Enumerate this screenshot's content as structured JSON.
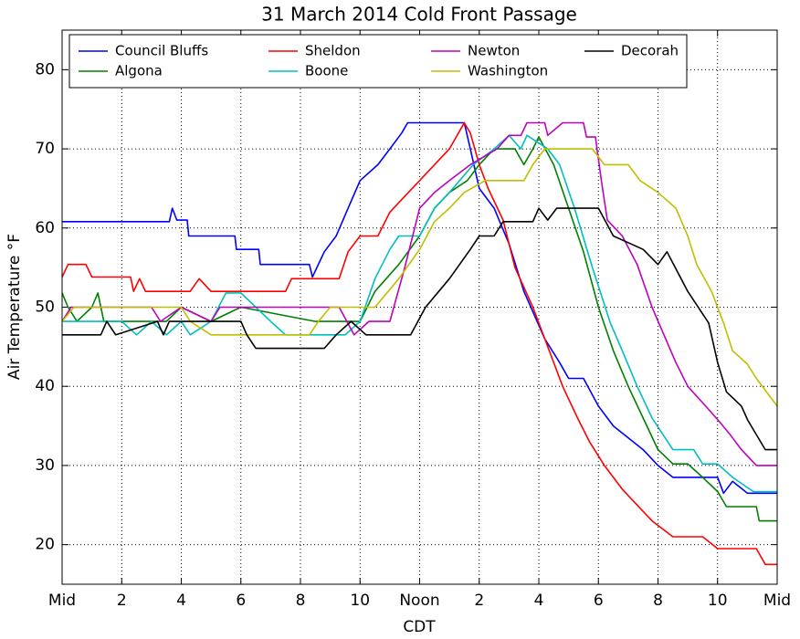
{
  "chart_data": {
    "type": "line",
    "title": "31 March 2014 Cold Front Passage",
    "xlabel": "CDT",
    "ylabel": "Air Temperature °F",
    "xlim": [
      0,
      24
    ],
    "ylim": [
      15,
      85
    ],
    "xticks": [
      {
        "value": 0,
        "label": "Mid"
      },
      2,
      4,
      6,
      8,
      10,
      {
        "value": 12,
        "label": "Noon"
      },
      {
        "value": 14,
        "label": "2"
      },
      {
        "value": 16,
        "label": "4"
      },
      {
        "value": 18,
        "label": "6"
      },
      {
        "value": 20,
        "label": "8"
      },
      {
        "value": 22,
        "label": "10"
      },
      {
        "value": 24,
        "label": "Mid"
      }
    ],
    "yticks": [
      20,
      30,
      40,
      50,
      60,
      70,
      80
    ],
    "grid": true,
    "legend": "upper center",
    "series": [
      {
        "name": "Council Bluffs",
        "color": "#0000ff",
        "x": [
          0,
          3.6,
          3.7,
          3.85,
          4.2,
          4.25,
          5.8,
          5.85,
          6.6,
          6.65,
          8.3,
          8.4,
          8.8,
          9.2,
          9.6,
          10,
          10.6,
          11,
          11.4,
          11.6,
          13.5,
          13.7,
          14,
          14.5,
          15,
          15.5,
          16.2,
          16.7,
          17,
          17.5,
          18,
          18.5,
          19.5,
          20,
          20.5,
          22,
          22.2,
          22.5,
          23,
          24
        ],
        "values": [
          60.8,
          60.8,
          62.5,
          61,
          61,
          59,
          59,
          57.3,
          57.3,
          55.4,
          55.4,
          53.8,
          57,
          59,
          62.5,
          66,
          68,
          70,
          72,
          73.3,
          73.3,
          70,
          65,
          62.5,
          58,
          52,
          46,
          43,
          41,
          41,
          37.5,
          35,
          32,
          30,
          28.5,
          28.5,
          26.5,
          28,
          26.5,
          26.5
        ]
      },
      {
        "name": "Algona",
        "color": "#008000",
        "x": [
          0,
          0.2,
          0.5,
          1,
          1.2,
          1.4,
          3.5,
          4,
          5,
          6,
          8.5,
          10,
          10.5,
          11.3,
          12,
          12.5,
          13,
          13.6,
          14,
          14.5,
          15.2,
          15.5,
          15.8,
          16,
          16.5,
          17,
          17.5,
          18,
          18.5,
          19,
          19.5,
          20,
          20.5,
          21,
          21.5,
          22,
          22.3,
          23.3,
          23.4,
          24
        ],
        "values": [
          51.8,
          50,
          48.2,
          50,
          51.8,
          48.2,
          48.2,
          50,
          48.2,
          50,
          48.2,
          48.2,
          52,
          55.4,
          59,
          62.5,
          64.5,
          66,
          68,
          70,
          70,
          68,
          70,
          71.5,
          68,
          62.5,
          57,
          50,
          44.5,
          40,
          36,
          32,
          30.2,
          30.2,
          28.5,
          26.7,
          24.8,
          24.8,
          23,
          23
        ]
      },
      {
        "name": "Sheldon",
        "color": "#ff0000",
        "x": [
          0,
          0.2,
          0.8,
          1,
          2.3,
          2.4,
          2.6,
          2.8,
          4.3,
          4.6,
          5,
          7.5,
          7.7,
          9.3,
          9.6,
          10,
          10.6,
          11,
          11.5,
          12,
          12.5,
          13,
          13.5,
          13.7,
          14,
          14.3,
          14.8,
          15.2,
          15.8,
          16.3,
          16.8,
          17.3,
          17.7,
          18.2,
          18.8,
          19.3,
          19.8,
          20.5,
          21.5,
          22,
          23.3,
          23.6,
          24
        ],
        "values": [
          53.8,
          55.4,
          55.4,
          53.8,
          53.8,
          52,
          53.6,
          52,
          52,
          53.6,
          52,
          52,
          53.6,
          53.6,
          57,
          59,
          59,
          62,
          64,
          66,
          68,
          70,
          73.3,
          72,
          68,
          65,
          61,
          55,
          50,
          45,
          40,
          36,
          33,
          30,
          27,
          25,
          23,
          21,
          21,
          19.5,
          19.5,
          17.5,
          17.5
        ]
      },
      {
        "name": "Boone",
        "color": "#00bfbf",
        "x": [
          0,
          2,
          2.5,
          3,
          3.5,
          4,
          4.3,
          5,
          5.5,
          6,
          6.5,
          7,
          7.5,
          9.5,
          10,
          10.5,
          11,
          11.3,
          12,
          12.5,
          13,
          13.8,
          14.5,
          15,
          15.4,
          15.6,
          16.3,
          16.7,
          17.2,
          17.8,
          18.4,
          18.8,
          19.3,
          19.8,
          20.5,
          21.2,
          21.5,
          22,
          22.5,
          23.2,
          24
        ],
        "values": [
          48.2,
          48.2,
          46.5,
          48.2,
          46.5,
          48.2,
          46.5,
          48.2,
          51.8,
          51.8,
          50,
          48.2,
          46.5,
          46.5,
          48.2,
          53.6,
          57.3,
          59,
          59,
          62.5,
          64.5,
          68,
          70,
          71.7,
          70,
          71.7,
          70,
          68,
          62.5,
          55,
          48,
          44.5,
          40,
          36,
          32,
          32,
          30.2,
          30.2,
          28.5,
          26.7,
          26.7
        ]
      },
      {
        "name": "Newton",
        "color": "#bf00bf",
        "x": [
          0,
          0.3,
          3,
          3.3,
          4,
          5,
          5.3,
          9.3,
          9.8,
          10.3,
          11,
          11.5,
          12,
          12.5,
          13,
          13.7,
          14.6,
          15,
          15.4,
          15.6,
          16.2,
          16.3,
          16.8,
          17.5,
          17.6,
          17.9,
          18.1,
          18.3,
          18.8,
          19.3,
          19.8,
          20.2,
          20.6,
          21,
          21.6,
          22,
          22.4,
          22.8,
          23.3,
          24
        ],
        "values": [
          48.2,
          50,
          50,
          48.2,
          50,
          48.2,
          50,
          50,
          46.5,
          48.2,
          48.2,
          55,
          62.5,
          64.5,
          66,
          68,
          70,
          71.7,
          71.7,
          73.3,
          73.3,
          71.7,
          73.3,
          73.3,
          71.5,
          71.5,
          66,
          61,
          59,
          55.4,
          50,
          46.5,
          43,
          40,
          37.5,
          35.8,
          34,
          32,
          30,
          30
        ]
      },
      {
        "name": "Washington",
        "color": "#bfbf00",
        "x": [
          0,
          0.4,
          4,
          4.3,
          5,
          8.3,
          8.6,
          9,
          10.5,
          11.3,
          12,
          12.5,
          13,
          13.5,
          14.2,
          15.5,
          15.8,
          16.2,
          17.8,
          18.2,
          19,
          19.4,
          20,
          20.6,
          21,
          21.3,
          21.8,
          22.2,
          22.5,
          23,
          23.3,
          24
        ],
        "values": [
          48.2,
          50,
          50,
          48.2,
          46.5,
          46.5,
          48.2,
          50,
          50,
          53.6,
          57.3,
          60.8,
          62.5,
          64.5,
          66,
          66,
          68,
          70,
          70,
          68,
          68,
          66,
          64.5,
          62.5,
          59,
          55.4,
          52,
          48,
          44.5,
          42.8,
          41,
          37.5
        ]
      },
      {
        "name": "Decorah",
        "color": "#000000",
        "x": [
          0,
          1.3,
          1.5,
          1.8,
          3.2,
          3.4,
          3.6,
          6,
          6.2,
          6.5,
          8.8,
          9.2,
          9.7,
          10.2,
          11.7,
          12.2,
          13,
          13.7,
          14,
          14.5,
          14.8,
          15.8,
          16,
          16.3,
          16.6,
          18,
          18.5,
          19.5,
          20,
          20.3,
          21,
          21.7,
          22,
          22.3,
          22.8,
          23,
          23.6,
          24
        ],
        "values": [
          46.5,
          46.5,
          48.2,
          46.5,
          48.2,
          46.5,
          48.2,
          48.2,
          46.5,
          44.8,
          44.8,
          46.5,
          48.2,
          46.5,
          46.5,
          50,
          53.6,
          57.3,
          59,
          59,
          60.8,
          60.8,
          62.5,
          61,
          62.5,
          62.5,
          59,
          57.3,
          55.4,
          57,
          52,
          48,
          43,
          39.3,
          37.5,
          35.8,
          32,
          32
        ]
      }
    ]
  }
}
